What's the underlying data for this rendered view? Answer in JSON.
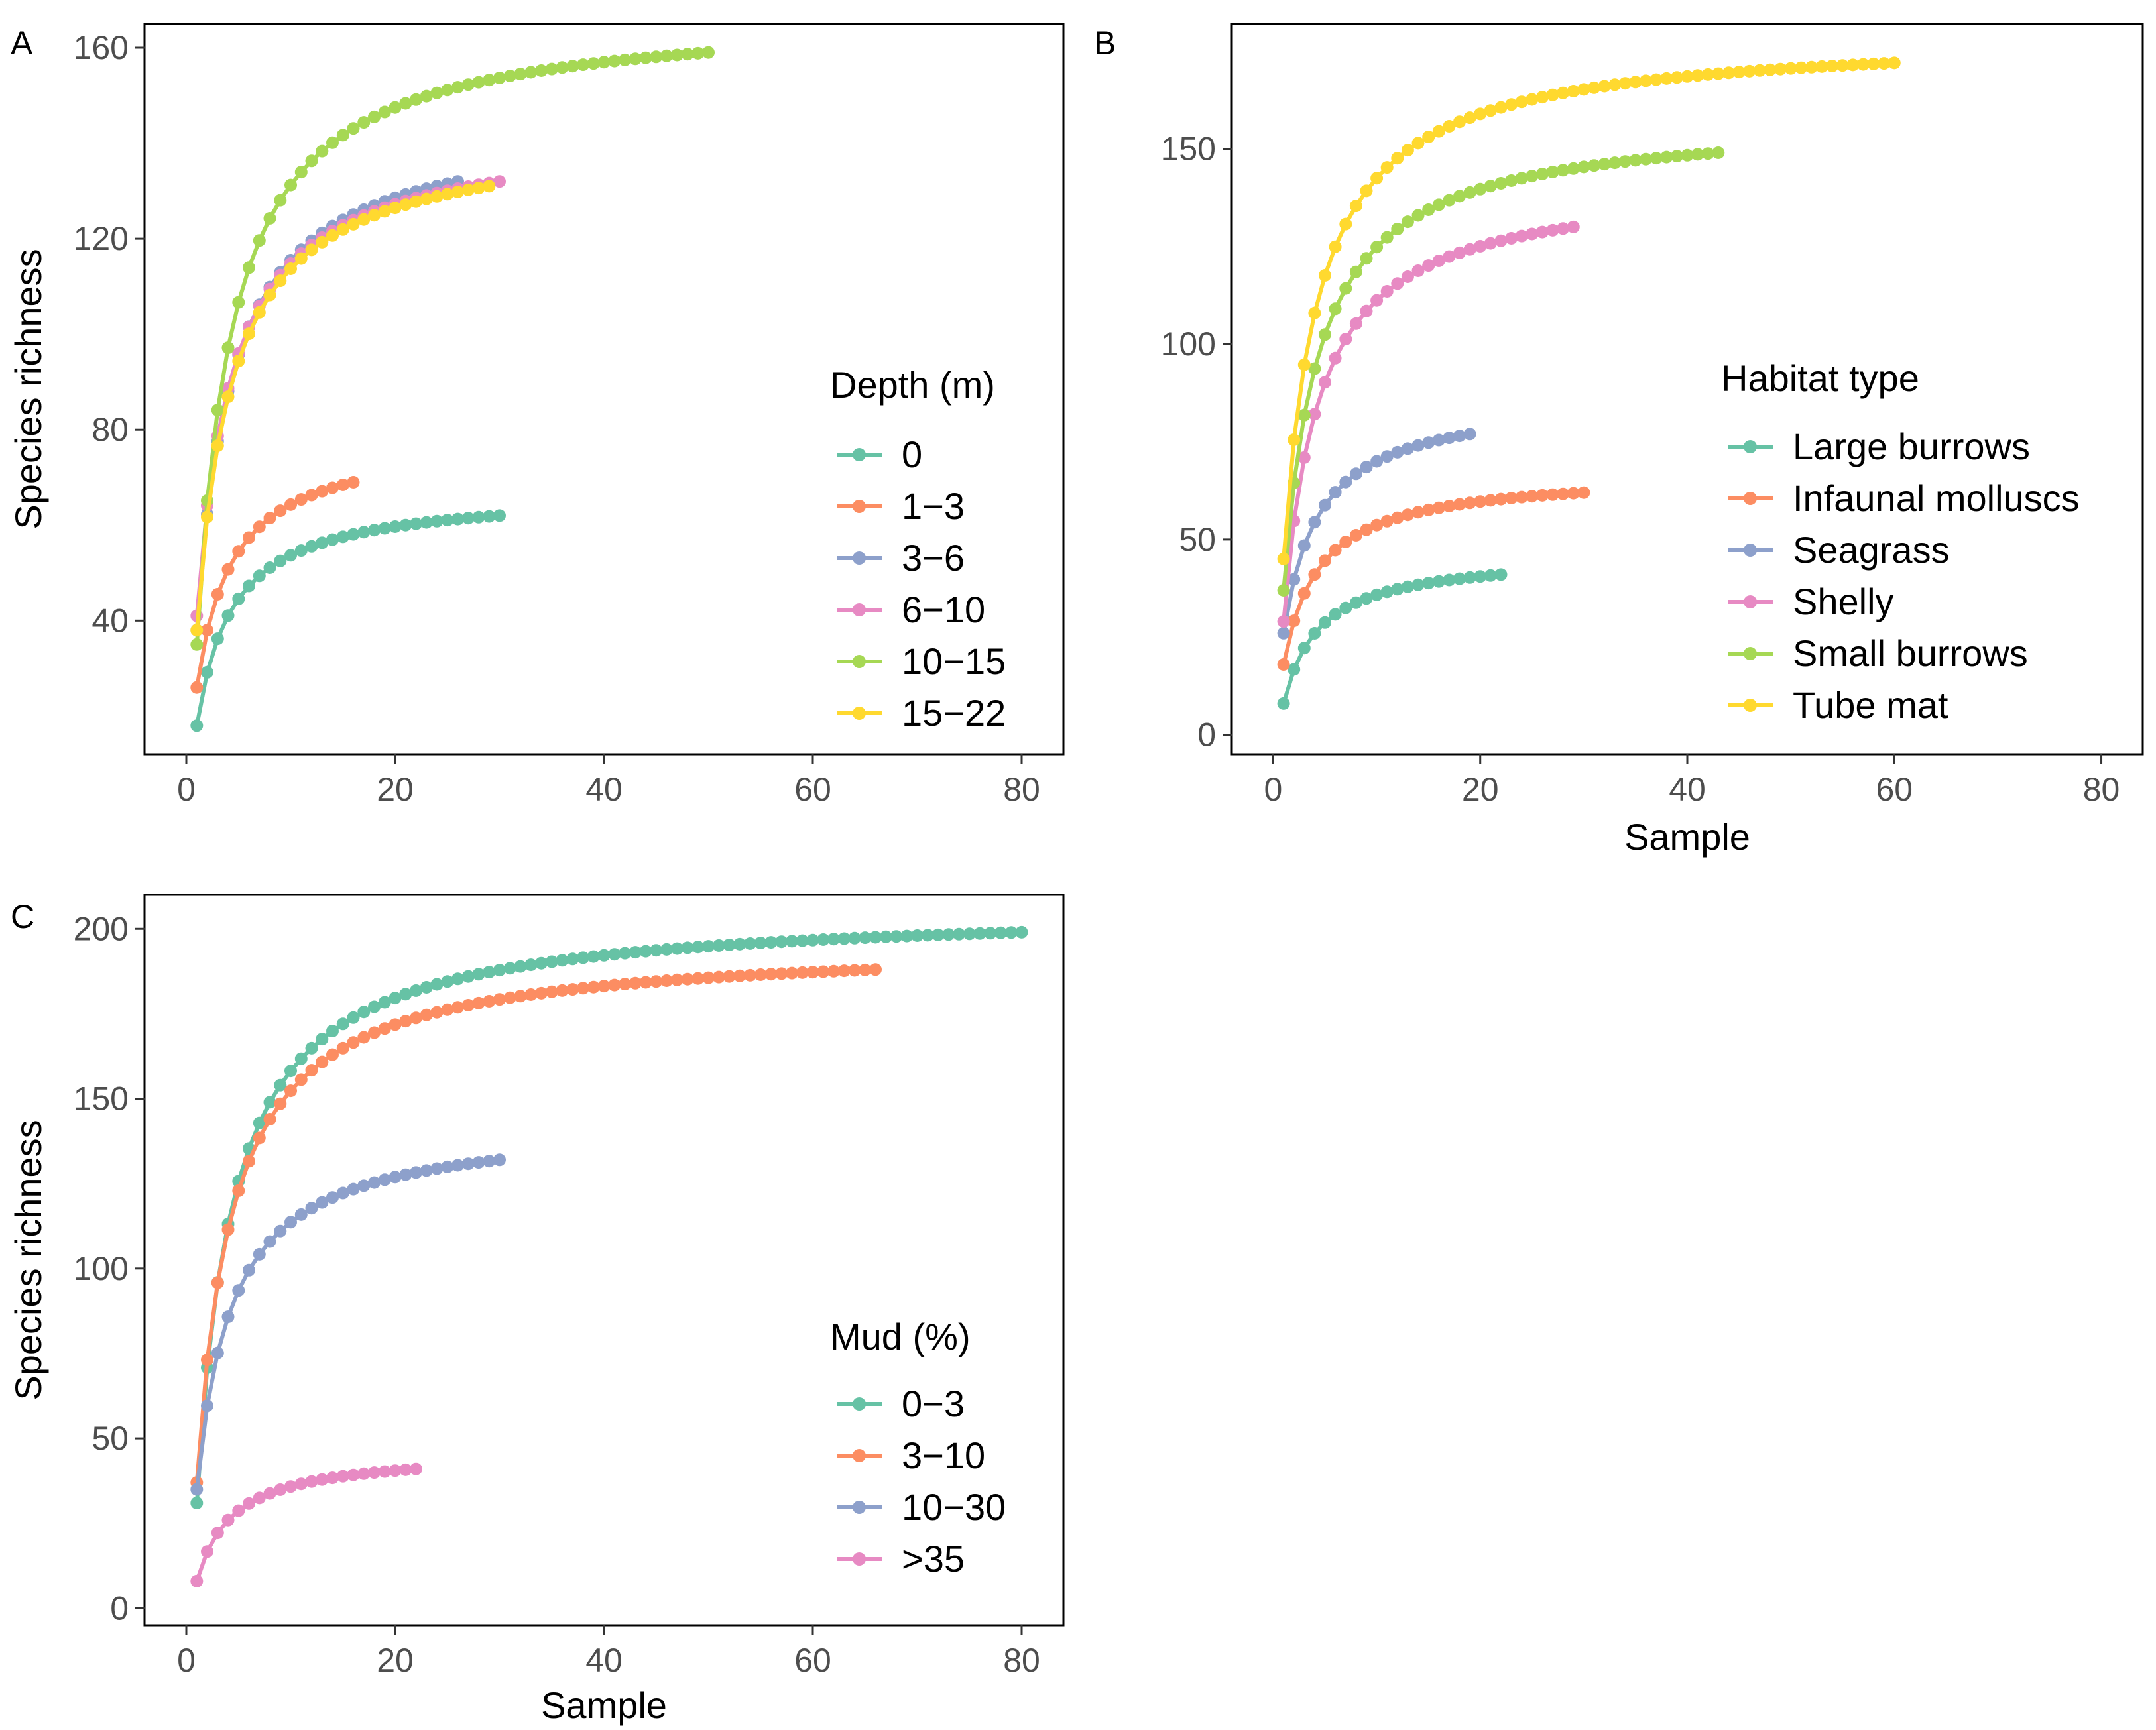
{
  "figure": {
    "type": "species accumulation curves",
    "panels": [
      "A",
      "B",
      "C"
    ]
  },
  "chart_data": [
    {
      "type": "line",
      "panel": "A",
      "xlabel": "",
      "ylabel": "Species richness",
      "xlim": [
        -4,
        84
      ],
      "ylim": [
        12,
        165
      ],
      "xticks": [
        0,
        20,
        40,
        60,
        80
      ],
      "yticks": [
        40,
        80,
        120,
        160
      ],
      "legend": {
        "title": "Depth (m)",
        "position": "right"
      },
      "series": [
        {
          "name": "0",
          "color": "#66C2A5",
          "n": 30,
          "s1": 18,
          "end": 62
        },
        {
          "name": "1−3",
          "color": "#FC8D62",
          "n": 16,
          "s1": 26,
          "end": 69
        },
        {
          "name": "3−6",
          "color": "#8DA0CB",
          "n": 26,
          "s1": 38,
          "end": 132
        },
        {
          "name": "6−10",
          "color": "#E78AC3",
          "n": 30,
          "s1": 41,
          "end": 132
        },
        {
          "name": "10−15",
          "color": "#A6D854",
          "n": 50,
          "s1": 35,
          "end": 159
        },
        {
          "name": "15−22",
          "color": "#FFD92F",
          "n": 29,
          "s1": 38,
          "end": 131
        }
      ]
    },
    {
      "type": "line",
      "panel": "B",
      "xlabel": "Sample",
      "ylabel": "",
      "xlim": [
        -4,
        84
      ],
      "ylim": [
        -5,
        182
      ],
      "xticks": [
        0,
        20,
        40,
        60,
        80
      ],
      "yticks": [
        0,
        50,
        100,
        150
      ],
      "legend": {
        "title": "Habitat type",
        "position": "right"
      },
      "series": [
        {
          "name": "Large burrows",
          "color": "#66C2A5",
          "n": 22,
          "s1": 8,
          "end": 41
        },
        {
          "name": "Infaunal molluscs",
          "color": "#FC8D62",
          "n": 30,
          "s1": 18,
          "end": 62
        },
        {
          "name": "Seagrass",
          "color": "#8DA0CB",
          "n": 19,
          "s1": 26,
          "end": 77
        },
        {
          "name": "Shelly",
          "color": "#E78AC3",
          "n": 29,
          "s1": 29,
          "end": 130
        },
        {
          "name": "Small burrows",
          "color": "#A6D854",
          "n": 43,
          "s1": 37,
          "end": 149
        },
        {
          "name": "Tube mat",
          "color": "#FFD92F",
          "n": 60,
          "s1": 45,
          "end": 172
        }
      ]
    },
    {
      "type": "line",
      "panel": "C",
      "xlabel": "Sample",
      "ylabel": "Species richness",
      "xlim": [
        -4,
        84
      ],
      "ylim": [
        -5,
        210
      ],
      "xticks": [
        0,
        20,
        40,
        60,
        80
      ],
      "yticks": [
        0,
        50,
        100,
        150,
        200
      ],
      "legend": {
        "title": "Mud (%)",
        "position": "right"
      },
      "series": [
        {
          "name": "0−3",
          "color": "#66C2A5",
          "n": 80,
          "s1": 31,
          "end": 199
        },
        {
          "name": "3−10",
          "color": "#FC8D62",
          "n": 66,
          "s1": 37,
          "end": 188
        },
        {
          "name": "10−30",
          "color": "#8DA0CB",
          "n": 30,
          "s1": 35,
          "end": 132
        },
        {
          "name": ">35",
          "color": "#E78AC3",
          "n": 22,
          "s1": 8,
          "end": 41
        }
      ]
    }
  ]
}
